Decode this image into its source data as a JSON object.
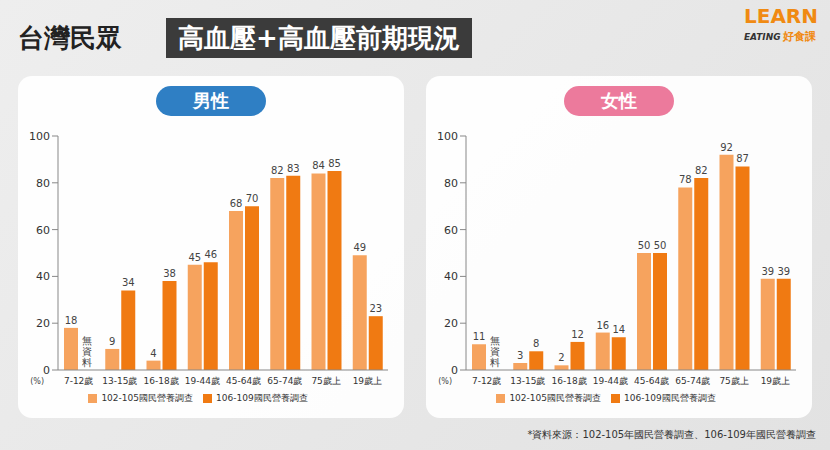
{
  "title": "台灣民眾",
  "subtitle": "高血壓+高血壓前期現況",
  "brand": [
    "LEARN",
    "EATING",
    "好食課"
  ],
  "source": "*資料來源：102-105年國民營養調查、106-109年國民營養調查",
  "chart_data": [
    {
      "type": "bar",
      "title": "男性",
      "categories": [
        "7-12歲",
        "13-15歲",
        "16-18歲",
        "19-44歲",
        "45-64歲",
        "65-74歲",
        "75歲上",
        "19歲上"
      ],
      "series": [
        {
          "name": "102-105國民營養調查",
          "color": "#f6a35e",
          "values": [
            18,
            9,
            4,
            45,
            68,
            82,
            84,
            49
          ]
        },
        {
          "name": "106-109國民營養調查",
          "color": "#f07a12",
          "values": [
            null,
            34,
            38,
            46,
            70,
            83,
            85,
            23
          ]
        }
      ],
      "annotations": [
        {
          "category": "7-12歲",
          "series": "106-109國民營養調查",
          "text": "無資料"
        }
      ],
      "y_label": "(%)",
      "ylim": [
        0,
        100
      ],
      "yticks": [
        0,
        20,
        40,
        60,
        80,
        100
      ],
      "grid": false,
      "data_labels": true,
      "legend": "bottom"
    },
    {
      "type": "bar",
      "title": "女性",
      "categories": [
        "7-12歲",
        "13-15歲",
        "16-18歲",
        "19-44歲",
        "45-64歲",
        "65-74歲",
        "75歲上",
        "19歲上"
      ],
      "series": [
        {
          "name": "102-105國民營養調查",
          "color": "#f6a35e",
          "values": [
            11,
            3,
            2,
            16,
            50,
            78,
            92,
            39
          ]
        },
        {
          "name": "106-109國民營養調查",
          "color": "#f07a12",
          "values": [
            null,
            8,
            12,
            14,
            50,
            82,
            87,
            39
          ]
        }
      ],
      "annotations": [
        {
          "category": "7-12歲",
          "series": "106-109國民營養調查",
          "text": "無資料"
        }
      ],
      "y_label": "(%)",
      "ylim": [
        0,
        100
      ],
      "yticks": [
        0,
        20,
        40,
        60,
        80,
        100
      ],
      "grid": false,
      "data_labels": true,
      "legend": "bottom"
    }
  ]
}
